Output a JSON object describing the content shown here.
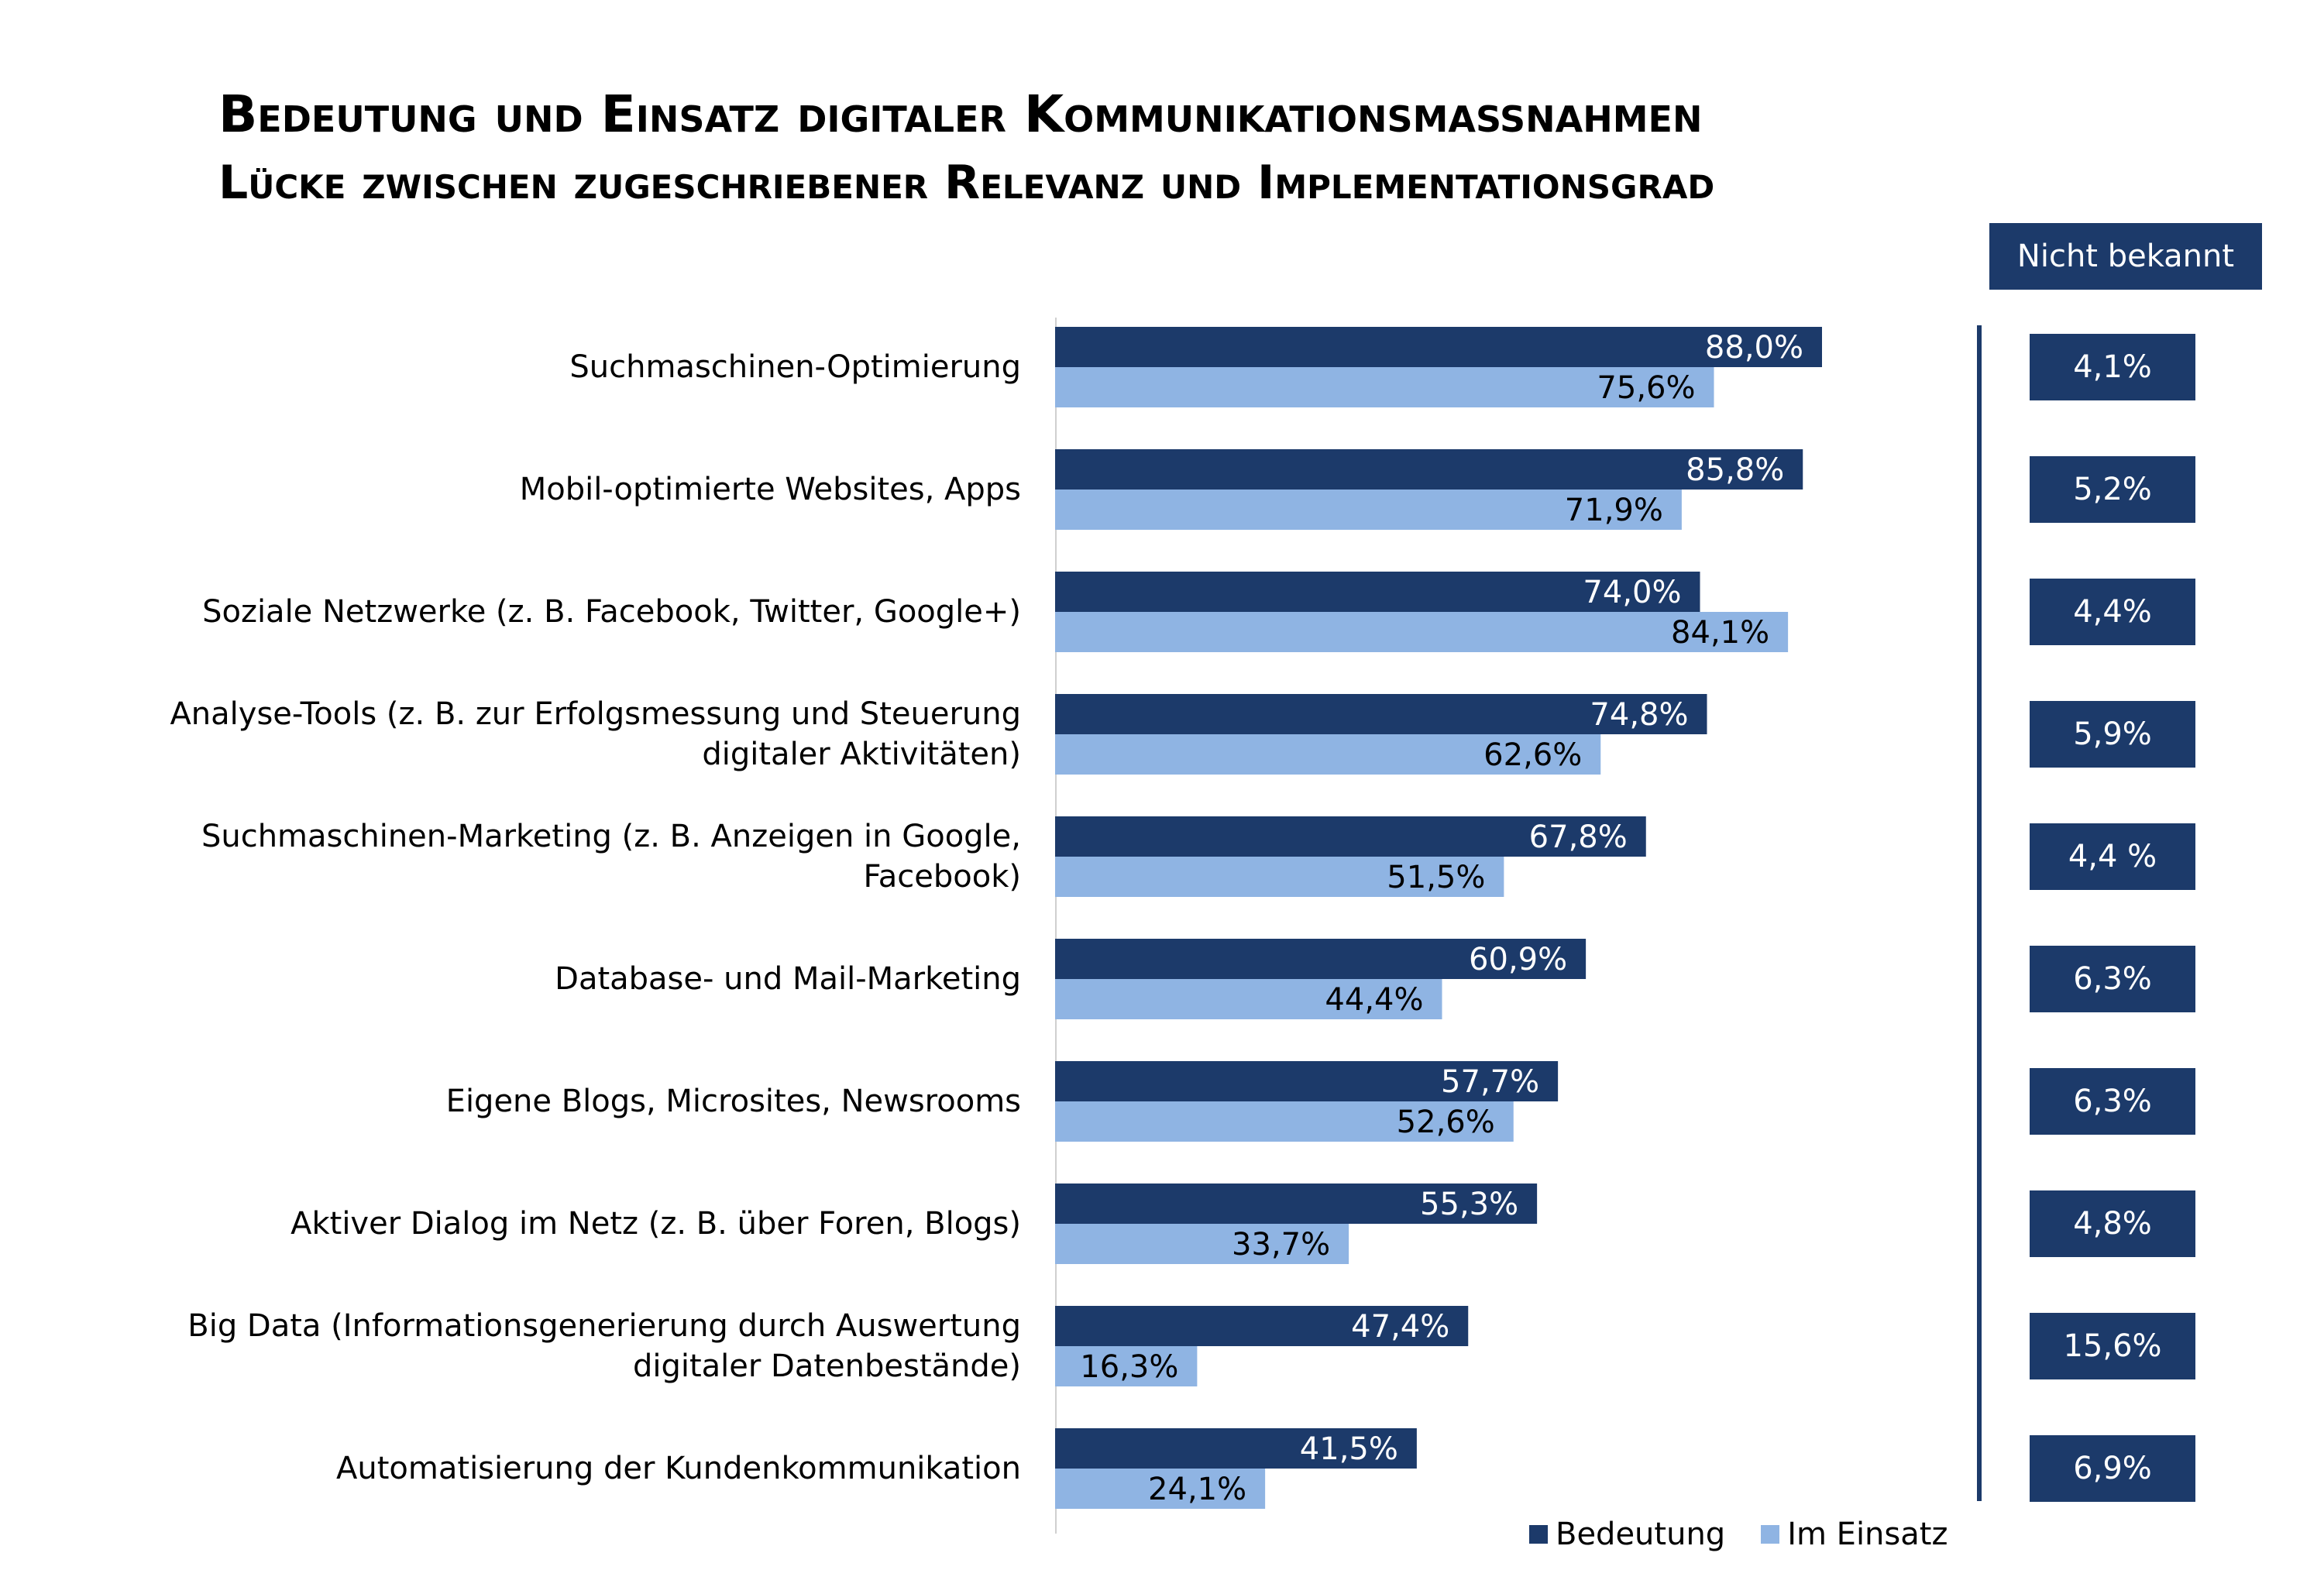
{
  "header": {
    "title": "Bedeutung und Einsatz digitaler Kommunikationsmaßnahmen",
    "subtitle": "Lücke zwischen zugeschriebener Relevanz und Implementationsgrad"
  },
  "nicht_bekannt": {
    "label": "Nicht bekannt",
    "values": [
      "4,1%",
      "5,2%",
      "4,4%",
      "5,9%",
      "4,4 %",
      "6,3%",
      "6,3%",
      "4,8%",
      "15,6%",
      "6,9%"
    ]
  },
  "colors": {
    "bedeutung": "#1c3a6a",
    "im_einsatz": "#8fb4e3"
  },
  "chart_data": {
    "type": "bar",
    "orientation": "horizontal",
    "categories": [
      [
        "Suchmaschinen-Optimierung"
      ],
      [
        "Mobil-optimierte Websites, Apps"
      ],
      [
        "Soziale Netzwerke (z. B. Facebook, Twitter, Google+)"
      ],
      [
        "Analyse-Tools (z. B. zur Erfolgsmessung und Steuerung",
        "digitaler Aktivitäten)"
      ],
      [
        "Suchmaschinen-Marketing (z. B. Anzeigen in Google,",
        "Facebook)"
      ],
      [
        "Database- und Mail-Marketing"
      ],
      [
        "Eigene Blogs, Microsites, Newsrooms"
      ],
      [
        "Aktiver Dialog im Netz (z. B. über Foren, Blogs)"
      ],
      [
        "Big Data (Informationsgenerierung durch Auswertung",
        "digitaler Datenbestände)"
      ],
      [
        "Automatisierung der Kundenkommunikation"
      ]
    ],
    "series": [
      {
        "name": "Bedeutung",
        "values": [
          88.0,
          85.8,
          74.0,
          74.8,
          67.8,
          60.9,
          57.7,
          55.3,
          47.4,
          41.5
        ],
        "labels": [
          "88,0%",
          "85,8%",
          "74,0%",
          "74,8%",
          "67,8%",
          "60,9%",
          "57,7%",
          "55,3%",
          "47,4%",
          "41,5%"
        ]
      },
      {
        "name": "Im Einsatz",
        "values": [
          75.6,
          71.9,
          84.1,
          62.6,
          51.5,
          44.4,
          52.6,
          33.7,
          16.3,
          24.1
        ],
        "labels": [
          "75,6%",
          "71,9%",
          "84,1%",
          "62,6%",
          "51,5%",
          "44,4%",
          "52,6%",
          "33,7%",
          "16,3%",
          "24,1%"
        ]
      }
    ],
    "xlim": [
      0,
      100
    ],
    "grid": false,
    "legend": "bottom-right"
  }
}
